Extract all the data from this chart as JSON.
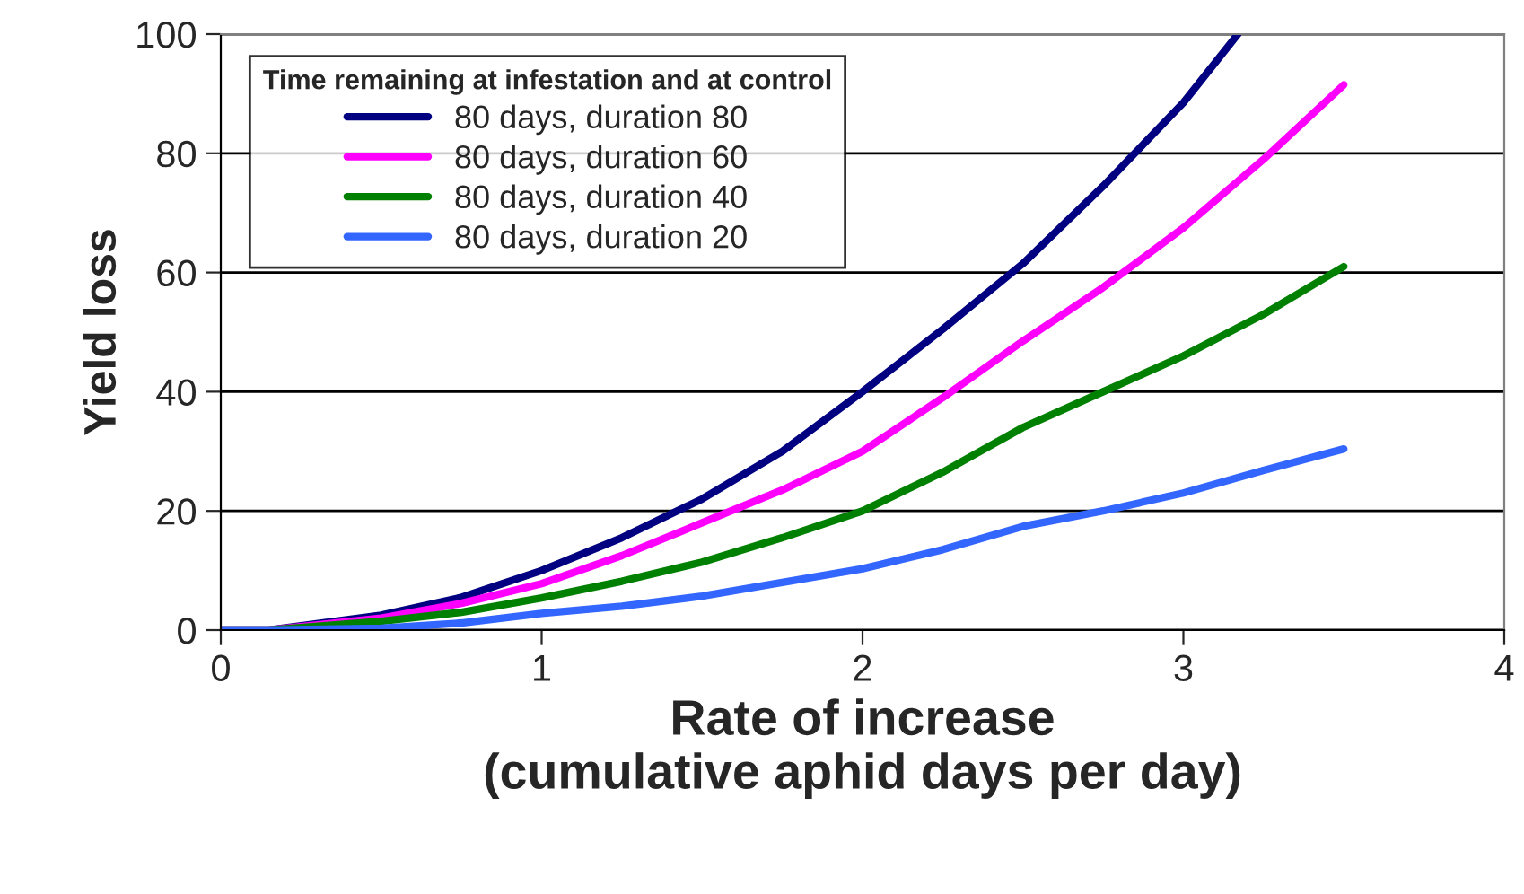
{
  "chart_data": {
    "type": "line",
    "xlabel": "Rate of increase\n(cumulative aphid days per day)",
    "ylabel": "Yield loss",
    "legend_title": "Time remaining at infestation and at control",
    "series": [
      {
        "name": "80 days, duration 80",
        "color": "#000080",
        "x": [
          0,
          0.15,
          0.5,
          0.75,
          1,
          1.25,
          1.5,
          1.75,
          2,
          2.25,
          2.5,
          2.75,
          3,
          3.17
        ],
        "values": [
          0,
          0,
          2.5,
          5.5,
          10,
          15.5,
          22,
          30,
          40,
          50.5,
          61.5,
          74.5,
          88.5,
          100
        ]
      },
      {
        "name": "80 days, duration 60",
        "color": "#ff00ff",
        "x": [
          0,
          0.15,
          0.5,
          0.75,
          1,
          1.25,
          1.5,
          1.75,
          2,
          2.25,
          2.5,
          2.75,
          3,
          3.25,
          3.5
        ],
        "values": [
          0,
          0,
          2,
          4.5,
          7.8,
          12.5,
          18,
          23.5,
          30,
          39,
          48.5,
          57.5,
          67.5,
          79,
          91.5
        ]
      },
      {
        "name": "80 days, duration 40",
        "color": "#008000",
        "x": [
          0,
          0.15,
          0.5,
          0.75,
          1,
          1.25,
          1.5,
          1.75,
          2,
          2.25,
          2.5,
          2.75,
          3,
          3.25,
          3.5
        ],
        "values": [
          0,
          0,
          1.5,
          3,
          5.4,
          8.2,
          11.4,
          15.5,
          20,
          26.5,
          34,
          40,
          46,
          53,
          61
        ]
      },
      {
        "name": "80 days, duration 20",
        "color": "#3366ff",
        "x": [
          0,
          0.15,
          0.5,
          0.75,
          1,
          1.25,
          1.5,
          1.75,
          2,
          2.25,
          2.5,
          2.75,
          3,
          3.25,
          3.5
        ],
        "values": [
          0,
          0,
          0.3,
          1.2,
          2.8,
          4,
          5.7,
          8,
          10.3,
          13.5,
          17.4,
          20,
          23,
          26.8,
          30.4
        ]
      }
    ],
    "xlim": [
      0,
      4
    ],
    "xticks": [
      0,
      1,
      2,
      3,
      4
    ],
    "ylim": [
      0,
      100
    ],
    "yticks": [
      0,
      20,
      40,
      60,
      80,
      100
    ],
    "grid": "y",
    "legend": "top left",
    "marker": "none",
    "line_style": "solid"
  }
}
